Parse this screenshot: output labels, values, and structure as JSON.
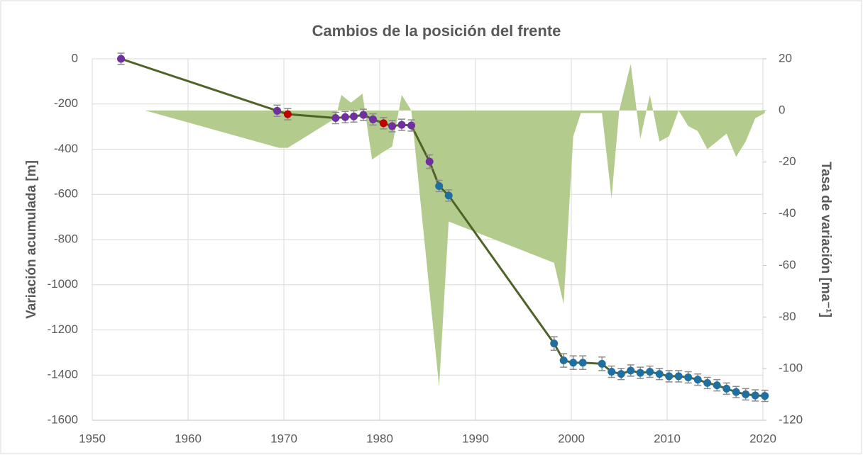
{
  "chart_data": {
    "type": "line",
    "title": "Cambios de la posición del frente",
    "ylabel": "Variación acumulada [m]",
    "y2label": "Tasa de variación [ma⁻¹]",
    "xlim": [
      1950,
      2020
    ],
    "xticks": [
      1950,
      1960,
      1970,
      1980,
      1990,
      2000,
      2010,
      2020
    ],
    "ylim": [
      -1600,
      0
    ],
    "yticks": [
      0,
      -200,
      -400,
      -600,
      -800,
      -1000,
      -1200,
      -1400,
      -1600
    ],
    "y2lim": [
      -120,
      20
    ],
    "y2ticks": [
      20,
      0,
      -20,
      -40,
      -60,
      -80,
      -100,
      -120
    ],
    "grid": true,
    "series": [
      {
        "type": "area",
        "axis": "y2",
        "color": "#b3cb8d",
        "x": [
          1955.5,
          1969.5,
          1970.4,
          1975.4,
          1976.0,
          1977.0,
          1978.2,
          1979.2,
          1980.4,
          1981.3,
          1982.3,
          1983.3,
          1986.2,
          1987.2,
          1998.2,
          1999.2,
          2000.2,
          2001.0,
          2003.2,
          2004.2,
          2005.0,
          2006.2,
          2007.2,
          2008.2,
          2009.2,
          2010.2,
          2011.2,
          2012.2,
          2013.2,
          2014.2,
          2015.2,
          2016.2,
          2017.2,
          2018.2,
          2019.2,
          2020.2
        ],
        "values": [
          0,
          -14.5,
          -14.5,
          -3,
          6,
          3,
          6.5,
          -19,
          -16,
          -14,
          6,
          0,
          -107,
          -43,
          -59,
          -75,
          -10,
          -1,
          -1,
          -34,
          0,
          18,
          -11,
          6,
          -12,
          -10,
          0,
          -6,
          -8,
          -15,
          -12,
          -9,
          -18,
          -12,
          -3,
          -1
        ]
      },
      {
        "type": "line",
        "color": "#4f6228",
        "x": [
          1953.0,
          1969.3,
          1970.4,
          1975.4,
          1976.4,
          1977.3,
          1978.3,
          1979.3,
          1980.4,
          1981.3,
          1982.3,
          1983.3,
          1985.2,
          1986.2,
          1987.2,
          1998.2,
          1999.2,
          2000.2,
          2001.2,
          2003.2,
          2004.2,
          2005.2,
          2006.2,
          2007.2,
          2008.2,
          2009.2,
          2010.2,
          2011.2,
          2012.2,
          2013.2,
          2014.2,
          2015.2,
          2016.2,
          2017.2,
          2018.2,
          2019.2,
          2020.2
        ],
        "values": [
          0,
          -230,
          -245,
          -262,
          -258,
          -255,
          -248,
          -268,
          -285,
          -298,
          -292,
          -295,
          -455,
          -563,
          -605,
          -1260,
          -1335,
          -1345,
          -1345,
          -1350,
          -1385,
          -1395,
          -1380,
          -1390,
          -1385,
          -1395,
          -1405,
          -1405,
          -1410,
          -1420,
          -1435,
          -1445,
          -1460,
          -1475,
          -1485,
          -1490,
          -1492
        ],
        "errors": [
          25,
          25,
          25,
          25,
          25,
          25,
          25,
          25,
          25,
          25,
          25,
          25,
          30,
          25,
          25,
          30,
          30,
          30,
          30,
          30,
          25,
          25,
          25,
          25,
          25,
          25,
          25,
          25,
          25,
          25,
          25,
          25,
          25,
          25,
          25,
          25,
          25
        ],
        "point_colors": [
          "#7030a0",
          "#7030a0",
          "#c00000",
          "#7030a0",
          "#7030a0",
          "#7030a0",
          "#7030a0",
          "#7030a0",
          "#c00000",
          "#7030a0",
          "#7030a0",
          "#7030a0",
          "#7030a0",
          "#1f6fa0",
          "#1f6fa0",
          "#1f6fa0",
          "#1f6fa0",
          "#1f6fa0",
          "#1f6fa0",
          "#1f6fa0",
          "#1f6fa0",
          "#1f6fa0",
          "#1f6fa0",
          "#1f6fa0",
          "#1f6fa0",
          "#1f6fa0",
          "#1f6fa0",
          "#1f6fa0",
          "#1f6fa0",
          "#1f6fa0",
          "#1f6fa0",
          "#1f6fa0",
          "#1f6fa0",
          "#1f6fa0",
          "#1f6fa0",
          "#1f6fa0",
          "#1f6fa0"
        ]
      }
    ]
  }
}
